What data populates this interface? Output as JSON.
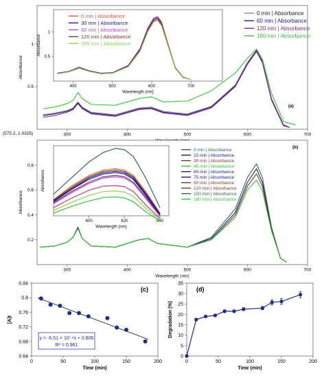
{
  "chart_data": [
    {
      "id": "a",
      "type": "line",
      "panel_label": "(a)",
      "xlabel": "Wavelength (nm)",
      "ylabel": "Absorbance",
      "xlim": [
        250,
        700
      ],
      "ylim": [
        0,
        1.45
      ],
      "xticks": [
        300,
        400,
        500,
        600,
        700
      ],
      "yticks": [
        0.5,
        1
      ],
      "legend": [
        "0 min | Absorbance",
        "60 min | Absorbance",
        "120 min | Absorbance",
        "180 min | Absorbance"
      ],
      "series": [
        {
          "name": "0 min | Absorbance",
          "color": "#888888",
          "x": [
            260,
            280,
            300,
            310,
            318,
            325,
            340,
            380,
            420,
            440,
            460,
            500,
            540,
            580,
            600,
            615,
            625,
            640,
            660,
            670
          ],
          "y": [
            0.17,
            0.19,
            0.22,
            0.25,
            0.32,
            0.26,
            0.2,
            0.17,
            0.25,
            0.26,
            0.21,
            0.18,
            0.27,
            0.52,
            0.78,
            0.93,
            0.8,
            0.36,
            0.05,
            0.02
          ]
        },
        {
          "name": "60 min | Absorbance",
          "color": "#1c1c8c",
          "x": [
            260,
            280,
            300,
            310,
            318,
            325,
            340,
            380,
            420,
            440,
            460,
            500,
            540,
            580,
            600,
            615,
            625,
            640,
            660,
            670
          ],
          "y": [
            0.16,
            0.18,
            0.21,
            0.24,
            0.31,
            0.25,
            0.19,
            0.16,
            0.24,
            0.25,
            0.2,
            0.17,
            0.26,
            0.51,
            0.77,
            0.92,
            0.79,
            0.35,
            0.05,
            0.02
          ]
        },
        {
          "name": "120 min | Absorbance",
          "color": "#8b2a7a",
          "x": [
            260,
            280,
            300,
            310,
            318,
            325,
            340,
            380,
            420,
            440,
            460,
            500,
            540,
            580,
            600,
            615,
            625,
            640,
            660,
            670
          ],
          "y": [
            0.14,
            0.16,
            0.2,
            0.23,
            0.3,
            0.24,
            0.18,
            0.15,
            0.23,
            0.24,
            0.19,
            0.16,
            0.25,
            0.5,
            0.76,
            0.91,
            0.78,
            0.34,
            0.04,
            0.02
          ]
        },
        {
          "name": "180 min | Absorbance",
          "color": "#3ac43a",
          "x": [
            260,
            280,
            300,
            310,
            318,
            325,
            340,
            380,
            420,
            440,
            460,
            500,
            540,
            580,
            600,
            615,
            625,
            640,
            660,
            680
          ],
          "y": [
            0.24,
            0.26,
            0.3,
            0.34,
            0.43,
            0.36,
            0.29,
            0.28,
            0.36,
            0.38,
            0.32,
            0.33,
            0.45,
            0.66,
            0.83,
            0.94,
            0.82,
            0.42,
            0.09,
            0.05
          ]
        }
      ]
    },
    {
      "id": "a-inset",
      "type": "line",
      "xlabel": "Wavelength (nm)",
      "ylabel": "Absorbance",
      "xlim": [
        350,
        780
      ],
      "ylim": [
        0,
        1.45
      ],
      "xticks": [
        400,
        500,
        600,
        700
      ],
      "yticks": [
        0.5,
        1
      ],
      "legend": [
        "0 min | Absorbance",
        "30 min | Absorbance",
        "60 min | Absorbance",
        "120 min | Absorbance",
        "155 min | Absorbance"
      ],
      "series": [
        {
          "name": "0 min | Absorbance",
          "color": "#e0554a",
          "x": [
            360,
            390,
            415,
            440,
            470,
            500,
            540,
            570,
            590,
            605,
            615,
            625,
            640,
            660,
            680,
            700
          ],
          "y": [
            0.16,
            0.2,
            0.28,
            0.21,
            0.16,
            0.17,
            0.32,
            0.66,
            1.08,
            1.28,
            1.31,
            1.2,
            0.8,
            0.28,
            0.08,
            0.03
          ]
        },
        {
          "name": "30 min | Absorbance",
          "color": "#1c1c8c",
          "x": [
            360,
            390,
            415,
            440,
            470,
            500,
            540,
            570,
            590,
            605,
            615,
            625,
            640,
            660,
            680,
            700
          ],
          "y": [
            0.16,
            0.2,
            0.28,
            0.21,
            0.16,
            0.17,
            0.31,
            0.65,
            1.06,
            1.26,
            1.29,
            1.18,
            0.78,
            0.27,
            0.08,
            0.03
          ]
        },
        {
          "name": "60 min | Absorbance",
          "color": "#b04fc4",
          "x": [
            360,
            390,
            415,
            440,
            470,
            500,
            540,
            570,
            590,
            605,
            615,
            625,
            640,
            660,
            680,
            700
          ],
          "y": [
            0.15,
            0.19,
            0.27,
            0.2,
            0.15,
            0.16,
            0.3,
            0.63,
            1.04,
            1.24,
            1.27,
            1.16,
            0.77,
            0.27,
            0.07,
            0.03
          ]
        },
        {
          "name": "120 min | Absorbance",
          "color": "#7a3a2a",
          "x": [
            360,
            390,
            415,
            440,
            470,
            500,
            540,
            570,
            590,
            605,
            615,
            625,
            640,
            660,
            680,
            700
          ],
          "y": [
            0.15,
            0.19,
            0.26,
            0.2,
            0.15,
            0.16,
            0.29,
            0.61,
            1.02,
            1.22,
            1.25,
            1.14,
            0.76,
            0.26,
            0.07,
            0.03
          ]
        },
        {
          "name": "155 min | Absorbance",
          "color": "#8fd44c",
          "x": [
            360,
            390,
            415,
            440,
            470,
            500,
            540,
            570,
            590,
            605,
            615,
            625,
            640,
            660,
            680,
            700
          ],
          "y": [
            0.15,
            0.19,
            0.26,
            0.2,
            0.15,
            0.16,
            0.29,
            0.6,
            1.0,
            1.2,
            1.23,
            1.12,
            0.75,
            0.26,
            0.07,
            0.03
          ]
        }
      ]
    },
    {
      "id": "b",
      "type": "line",
      "panel_label": "(b)",
      "xlabel": "Wavelength (nm)",
      "ylabel": "Absorbance",
      "xlim": [
        250,
        700
      ],
      "ylim": [
        0,
        1.0
      ],
      "xticks": [
        300,
        400,
        500,
        600,
        700
      ],
      "yticks": [
        0.2,
        0.4,
        0.6,
        0.8
      ],
      "annotation": "(575.2, 1.0325)",
      "legend": [
        "0 min | Absorbance",
        "15 min | Absorbance",
        "30 min | Absorbance",
        "45 min | Absorbance",
        "60 min | Absorbance",
        "75 min | Absorbance",
        "90 min | Absorbance",
        "120 min | Absorbance",
        "150 min | Absorbance",
        "180 min | Absorbance"
      ],
      "series": [
        {
          "name": "0 min | Absorbance",
          "color": "#2e6b4e",
          "x": [
            255,
            280,
            300,
            310,
            318,
            325,
            340,
            380,
            420,
            435,
            450,
            500,
            540,
            580,
            600,
            615,
            625,
            640,
            655,
            665
          ],
          "y": [
            0.14,
            0.15,
            0.18,
            0.22,
            0.3,
            0.21,
            0.15,
            0.14,
            0.2,
            0.21,
            0.17,
            0.14,
            0.22,
            0.45,
            0.7,
            0.81,
            0.7,
            0.3,
            0.05,
            0.02
          ]
        },
        {
          "name": "60 min | Absorbance",
          "color": "#1c1c8c",
          "x": [
            255,
            280,
            300,
            310,
            318,
            325,
            340,
            380,
            420,
            435,
            450,
            500,
            540,
            580,
            600,
            615,
            625,
            640,
            655,
            665
          ],
          "y": [
            0.14,
            0.15,
            0.18,
            0.22,
            0.3,
            0.21,
            0.15,
            0.14,
            0.2,
            0.21,
            0.17,
            0.14,
            0.21,
            0.42,
            0.66,
            0.77,
            0.66,
            0.29,
            0.05,
            0.02
          ]
        },
        {
          "name": "120 min | Absorbance",
          "color": "#7a3a2a",
          "x": [
            255,
            280,
            300,
            310,
            318,
            325,
            340,
            380,
            420,
            435,
            450,
            500,
            540,
            580,
            600,
            615,
            625,
            640,
            655,
            665
          ],
          "y": [
            0.14,
            0.15,
            0.18,
            0.22,
            0.29,
            0.21,
            0.15,
            0.14,
            0.2,
            0.21,
            0.17,
            0.14,
            0.2,
            0.4,
            0.63,
            0.73,
            0.63,
            0.28,
            0.05,
            0.02
          ]
        },
        {
          "name": "180 min | Absorbance",
          "color": "#3ac43a",
          "x": [
            255,
            280,
            300,
            310,
            318,
            325,
            340,
            380,
            420,
            435,
            450,
            500,
            540,
            580,
            600,
            615,
            625,
            640,
            655,
            665
          ],
          "y": [
            0.14,
            0.15,
            0.18,
            0.22,
            0.29,
            0.21,
            0.15,
            0.14,
            0.2,
            0.21,
            0.17,
            0.14,
            0.2,
            0.38,
            0.6,
            0.68,
            0.59,
            0.27,
            0.05,
            0.02
          ]
        }
      ]
    },
    {
      "id": "b-inset",
      "type": "line",
      "xlabel": "Wavelength (nm)",
      "ylabel": "Absorbance",
      "xlim": [
        580,
        645
      ],
      "ylim": [
        0.6,
        0.86
      ],
      "xticks": [
        600,
        620,
        640
      ],
      "series": [
        {
          "name": "0 min | Absorbance",
          "color": "#2e6b4e",
          "x": [
            580,
            590,
            600,
            608,
            615,
            620,
            625,
            632,
            640
          ],
          "y": [
            0.68,
            0.74,
            0.8,
            0.835,
            0.85,
            0.845,
            0.82,
            0.74,
            0.63
          ]
        },
        {
          "name": "15 min | Absorbance",
          "color": "#e07a3a",
          "x": [
            580,
            590,
            600,
            608,
            615,
            620,
            625,
            632,
            640
          ],
          "y": [
            0.66,
            0.71,
            0.75,
            0.77,
            0.775,
            0.77,
            0.75,
            0.69,
            0.61
          ]
        },
        {
          "name": "30 min | Absorbance",
          "color": "#7a3a2a",
          "x": [
            580,
            590,
            600,
            608,
            615,
            620,
            625,
            632,
            640
          ],
          "y": [
            0.658,
            0.705,
            0.745,
            0.765,
            0.77,
            0.765,
            0.745,
            0.685,
            0.608
          ]
        },
        {
          "name": "45 min | Absorbance",
          "color": "#1c1c8c",
          "x": [
            580,
            590,
            600,
            608,
            615,
            620,
            625,
            632,
            640
          ],
          "y": [
            0.655,
            0.7,
            0.74,
            0.76,
            0.765,
            0.76,
            0.74,
            0.68,
            0.605
          ]
        },
        {
          "name": "60 min | Absorbance",
          "color": "#1c1c8c",
          "x": [
            580,
            590,
            600,
            608,
            615,
            620,
            625,
            632,
            640
          ],
          "y": [
            0.652,
            0.697,
            0.735,
            0.755,
            0.76,
            0.755,
            0.735,
            0.675,
            0.603
          ]
        },
        {
          "name": "75 min | Absorbance",
          "color": "#8b2a7a",
          "x": [
            580,
            590,
            600,
            608,
            615,
            620,
            625,
            632,
            640
          ],
          "y": [
            0.648,
            0.69,
            0.725,
            0.745,
            0.75,
            0.745,
            0.725,
            0.668,
            0.6
          ]
        },
        {
          "name": "90 min | Absorbance",
          "color": "#b04fc4",
          "x": [
            580,
            590,
            600,
            608,
            615,
            620,
            625,
            632,
            640
          ],
          "y": [
            0.645,
            0.685,
            0.72,
            0.74,
            0.745,
            0.74,
            0.72,
            0.664,
            0.598
          ]
        },
        {
          "name": "120 min | Absorbance",
          "color": "#c23a7a",
          "x": [
            580,
            590,
            600,
            608,
            615,
            620,
            625,
            632,
            640
          ],
          "y": [
            0.63,
            0.665,
            0.695,
            0.71,
            0.712,
            0.708,
            0.69,
            0.64,
            0.59
          ]
        },
        {
          "name": "150 min | Absorbance",
          "color": "#8fd44c",
          "x": [
            580,
            590,
            600,
            608,
            615,
            620,
            625,
            632,
            640
          ],
          "y": [
            0.62,
            0.65,
            0.675,
            0.69,
            0.692,
            0.688,
            0.672,
            0.628,
            0.585
          ]
        },
        {
          "name": "180 min | Absorbance",
          "color": "#3ac43a",
          "x": [
            580,
            590,
            600,
            608,
            615,
            620,
            625,
            632,
            640
          ],
          "y": [
            0.61,
            0.635,
            0.655,
            0.668,
            0.67,
            0.666,
            0.652,
            0.615,
            0.58
          ]
        }
      ]
    },
    {
      "id": "c",
      "type": "scatter",
      "panel_label": "(c)",
      "xlabel": "Time (min)",
      "ylabel": "[A]t",
      "xlim": [
        0,
        200
      ],
      "ylim": [
        0.64,
        0.84
      ],
      "xticks": [
        0,
        50,
        100,
        150,
        200
      ],
      "yticks": [
        0.64,
        0.68,
        0.72,
        0.76,
        0.8,
        0.84
      ],
      "x": [
        15,
        30,
        45,
        60,
        75,
        90,
        120,
        135,
        150,
        180
      ],
      "y": [
        0.798,
        0.781,
        0.778,
        0.758,
        0.758,
        0.749,
        0.744,
        0.718,
        0.712,
        0.68
      ],
      "fit": {
        "slope": -0.000651,
        "intercept": 0.806,
        "equation": "y = -6.51 × 10⁻⁴x + 0.806",
        "r2": "R² = 0.961"
      },
      "marker_color": "#1c2c8c"
    },
    {
      "id": "d",
      "type": "line",
      "panel_label": "(d)",
      "xlabel": "Time (min)",
      "ylabel": "Degradation (%)",
      "xlim": [
        0,
        200
      ],
      "ylim": [
        0,
        35
      ],
      "xticks": [
        0,
        50,
        100,
        150,
        200
      ],
      "yticks": [
        0,
        5,
        10,
        15,
        20,
        25,
        30,
        35
      ],
      "x": [
        0,
        15,
        30,
        45,
        60,
        75,
        90,
        120,
        135,
        150,
        180
      ],
      "y": [
        0,
        17.5,
        19,
        19.5,
        21.5,
        21.5,
        22.5,
        23,
        25.8,
        26.2,
        29.5
      ],
      "error": [
        0,
        0.6,
        0.5,
        0.6,
        0.7,
        0.6,
        0.7,
        0.8,
        1.2,
        1.4,
        1.5
      ],
      "color": "#1c2c8c"
    }
  ]
}
